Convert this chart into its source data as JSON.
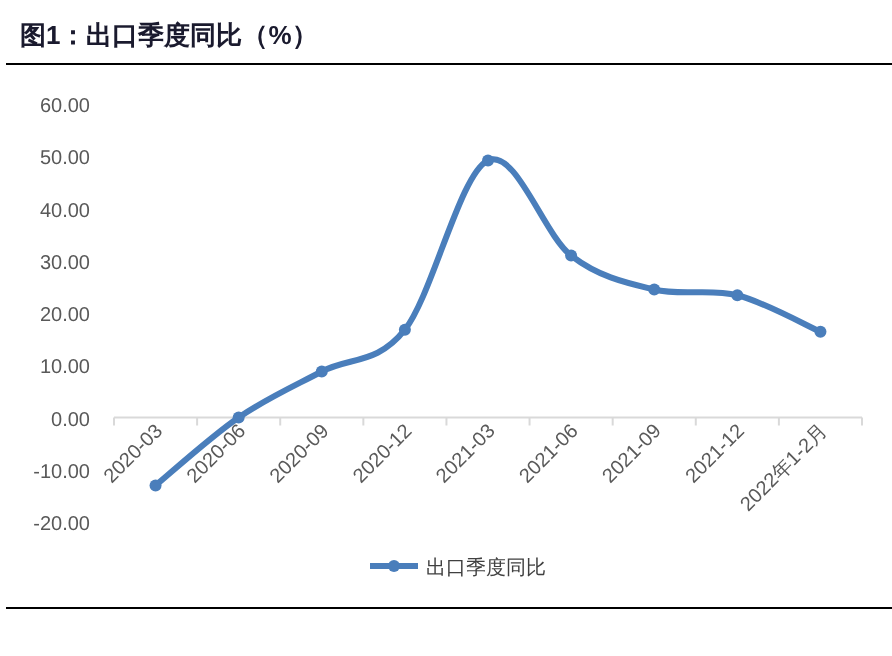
{
  "chart_data": {
    "type": "line",
    "title": "图1：出口季度同比（%）",
    "categories": [
      "2020-03",
      "2020-06",
      "2020-09",
      "2020-12",
      "2021-03",
      "2021-06",
      "2021-09",
      "2021-12",
      "2022年1-2月"
    ],
    "series": [
      {
        "name": "出口季度同比",
        "color": "#4a7ebb",
        "values": [
          -13.0,
          0.0,
          8.8,
          16.8,
          49.2,
          31.0,
          24.5,
          23.4,
          16.4
        ]
      }
    ],
    "ylim": [
      -20,
      60
    ],
    "yticks": [
      {
        "value": -20,
        "label": "-20.00"
      },
      {
        "value": -10,
        "label": "-10.00"
      },
      {
        "value": 0,
        "label": "0.00"
      },
      {
        "value": 10,
        "label": "10.00"
      },
      {
        "value": 20,
        "label": "20.00"
      },
      {
        "value": 30,
        "label": "30.00"
      },
      {
        "value": 40,
        "label": "40.00"
      },
      {
        "value": 50,
        "label": "50.00"
      },
      {
        "value": 60,
        "label": "60.00"
      }
    ],
    "grid": false,
    "legend": "bottom",
    "marker": "circle",
    "line_style": "solid"
  }
}
